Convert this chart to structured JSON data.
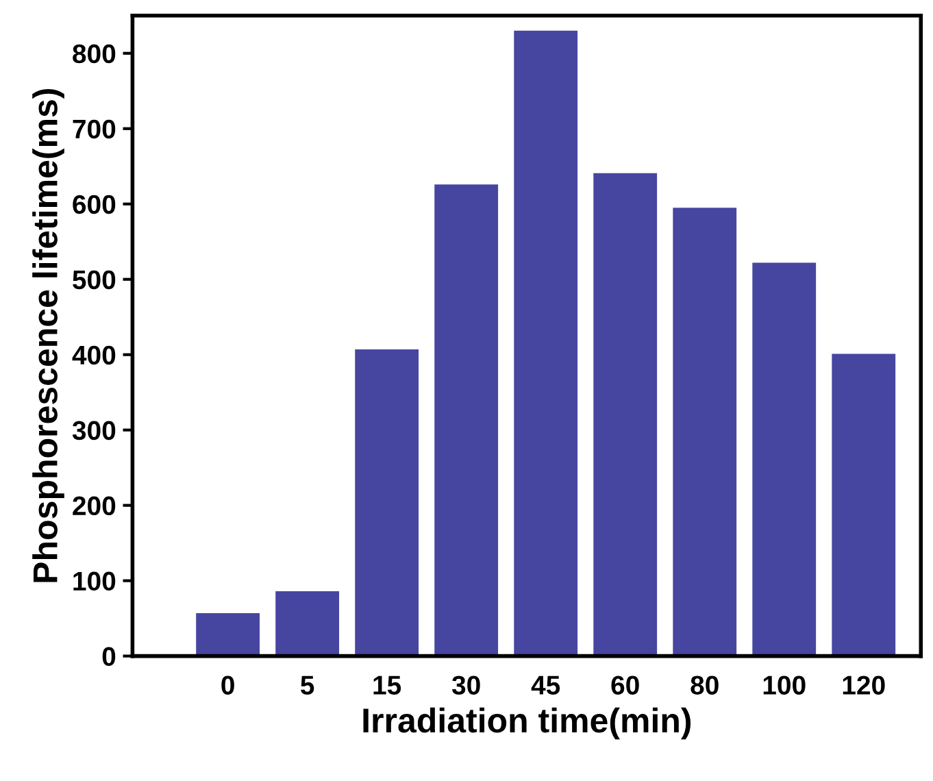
{
  "chart_data": {
    "type": "bar",
    "xlabel": "Irradiation time(min)",
    "ylabel": "Phosphorescence lifetime(ms)",
    "categories": [
      "0",
      "5",
      "15",
      "30",
      "45",
      "60",
      "80",
      "100",
      "120"
    ],
    "values": [
      57,
      86,
      407,
      626,
      830,
      641,
      595,
      522,
      401
    ],
    "color": "#4646a0",
    "ylim": [
      0,
      850
    ],
    "yticks": [
      0,
      100,
      200,
      300,
      400,
      500,
      600,
      700,
      800
    ],
    "grid": false
  }
}
